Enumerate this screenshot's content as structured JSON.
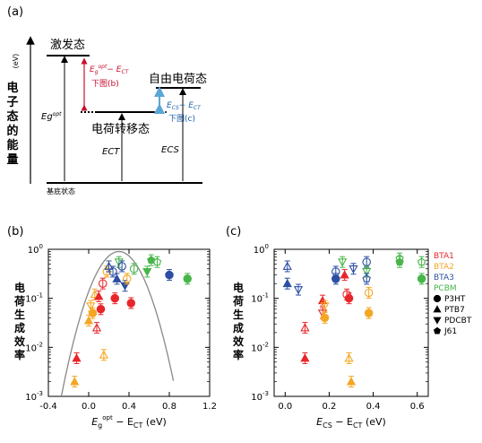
{
  "panel_labels": {
    "a": "(a)",
    "b": "(b)",
    "c": "(c)"
  },
  "diagram": {
    "y_axis_label": [
      "电",
      "子",
      "态",
      "的",
      "能",
      "量"
    ],
    "y_axis_unit": "(eV)",
    "excited_state": "激发态",
    "ct_state": "电荷转移态",
    "free_charge_state": "自由电荷态",
    "ground_state": "基底状态",
    "eg_label": "Eg",
    "eg_sup": "opt",
    "ect_label": "ECT",
    "ecs_label": "ECS",
    "diff_red_line1_a": "E",
    "diff_red_line1_sub": "g",
    "diff_red_line1_sup": "opt",
    "diff_red_line1_b": "− E",
    "diff_red_line1_sub2": "CT",
    "diff_red_line2": "下图(b)",
    "diff_blue_line1_a": "E",
    "diff_blue_line1_sub": "CS",
    "diff_blue_line1_b": "− E",
    "diff_blue_line1_sub2": "CT",
    "diff_blue_line2": "下图(c)",
    "colors": {
      "red": "#c8102e",
      "blue": "#1f5fa8",
      "light_blue": "#5aa6d8"
    }
  },
  "y_label_chars": [
    "电",
    "荷",
    "生",
    "成",
    "效",
    "率"
  ],
  "legend": {
    "acceptors": [
      {
        "name": "BTA1",
        "color": "#e8262a"
      },
      {
        "name": "BTA2",
        "color": "#f5a623"
      },
      {
        "name": "BTA3",
        "color": "#2b4ea2"
      },
      {
        "name": "PCBM",
        "color": "#47b549"
      }
    ],
    "donors": [
      {
        "name": "P3HT",
        "marker": "circle"
      },
      {
        "name": "PTB7",
        "marker": "triangle-up"
      },
      {
        "name": "PDCBT",
        "marker": "triangle-down"
      },
      {
        "name": "J61",
        "marker": "pentagon"
      }
    ]
  },
  "chart_data": [
    {
      "type": "scatter",
      "panel": "b",
      "xlabel_main": "E",
      "xlabel_sub1": "g",
      "xlabel_sup": "opt",
      "xlabel_mid": " − E",
      "xlabel_sub2": "CT",
      "xlabel_unit": " (eV)",
      "ylabel": "电荷生成效率",
      "xlim": [
        -0.4,
        1.2
      ],
      "ylim": [
        0.001,
        1
      ],
      "yscale": "log",
      "xticks": [
        "-0.4",
        "0.0",
        "0.4",
        "0.8",
        "1.2"
      ],
      "yticks": [
        "10",
        "10",
        "10",
        "10"
      ],
      "ytick_exps": [
        "-3",
        "-2",
        "-1",
        "0"
      ],
      "fit_curve": "gaussian",
      "points": [
        {
          "x": -0.12,
          "y": 0.006,
          "color": "#e8262a",
          "marker": "triangle-up",
          "filled": true
        },
        {
          "x": -0.14,
          "y": 0.002,
          "color": "#f5a623",
          "marker": "triangle-up",
          "filled": true
        },
        {
          "x": 0.0,
          "y": 0.035,
          "color": "#f5a623",
          "marker": "triangle-up",
          "filled": true
        },
        {
          "x": 0.02,
          "y": 0.07,
          "color": "#f5a623",
          "marker": "triangle-down",
          "filled": false
        },
        {
          "x": 0.04,
          "y": 0.05,
          "color": "#f5a623",
          "marker": "circle",
          "filled": true
        },
        {
          "x": 0.06,
          "y": 0.12,
          "color": "#f5a623",
          "marker": "triangle-up",
          "filled": false
        },
        {
          "x": 0.08,
          "y": 0.025,
          "color": "#e8262a",
          "marker": "triangle-up",
          "filled": false
        },
        {
          "x": 0.1,
          "y": 0.11,
          "color": "#e8262a",
          "marker": "triangle-up",
          "filled": true
        },
        {
          "x": 0.12,
          "y": 0.06,
          "color": "#e8262a",
          "marker": "circle",
          "filled": true
        },
        {
          "x": 0.14,
          "y": 0.2,
          "color": "#e8262a",
          "marker": "circle",
          "filled": false
        },
        {
          "x": 0.15,
          "y": 0.007,
          "color": "#f5a623",
          "marker": "triangle-up",
          "filled": false
        },
        {
          "x": 0.18,
          "y": 0.35,
          "color": "#f5a623",
          "marker": "circle",
          "filled": false
        },
        {
          "x": 0.2,
          "y": 0.45,
          "color": "#2b4ea2",
          "marker": "triangle-up",
          "filled": false
        },
        {
          "x": 0.24,
          "y": 0.35,
          "color": "#2b4ea2",
          "marker": "circle",
          "filled": false
        },
        {
          "x": 0.26,
          "y": 0.1,
          "color": "#e8262a",
          "marker": "circle",
          "filled": true
        },
        {
          "x": 0.28,
          "y": 0.25,
          "color": "#2b4ea2",
          "marker": "triangle-up",
          "filled": true
        },
        {
          "x": 0.3,
          "y": 0.55,
          "color": "#47b549",
          "marker": "triangle-down",
          "filled": false
        },
        {
          "x": 0.33,
          "y": 0.45,
          "color": "#2b4ea2",
          "marker": "circle",
          "filled": false
        },
        {
          "x": 0.36,
          "y": 0.18,
          "color": "#2b4ea2",
          "marker": "triangle-down",
          "filled": true
        },
        {
          "x": 0.38,
          "y": 0.25,
          "color": "#f5a623",
          "marker": "circle",
          "filled": false
        },
        {
          "x": 0.42,
          "y": 0.08,
          "color": "#e8262a",
          "marker": "circle",
          "filled": true
        },
        {
          "x": 0.45,
          "y": 0.4,
          "color": "#47b549",
          "marker": "circle",
          "filled": false
        },
        {
          "x": 0.58,
          "y": 0.35,
          "color": "#47b549",
          "marker": "triangle-down",
          "filled": true
        },
        {
          "x": 0.62,
          "y": 0.6,
          "color": "#47b549",
          "marker": "pentagon",
          "filled": true
        },
        {
          "x": 0.68,
          "y": 0.55,
          "color": "#47b549",
          "marker": "pentagon",
          "filled": false
        },
        {
          "x": 0.8,
          "y": 0.3,
          "color": "#2b4ea2",
          "marker": "circle",
          "filled": true
        },
        {
          "x": 0.98,
          "y": 0.25,
          "color": "#47b549",
          "marker": "circle",
          "filled": true
        }
      ]
    },
    {
      "type": "scatter",
      "panel": "c",
      "xlabel_main": "E",
      "xlabel_sub1": "CS",
      "xlabel_mid": " − E",
      "xlabel_sub2": "CT",
      "xlabel_unit": " (eV)",
      "ylabel": "电荷生成效率",
      "xlim": [
        -0.05,
        0.65
      ],
      "ylim": [
        0.001,
        1
      ],
      "yscale": "log",
      "xticks": [
        "0.0",
        "0.2",
        "0.4",
        "0.6"
      ],
      "yticks": [
        "10",
        "10",
        "10",
        "10"
      ],
      "ytick_exps": [
        "-3",
        "-2",
        "-1",
        "0"
      ],
      "points": [
        {
          "x": 0.01,
          "y": 0.45,
          "color": "#2b4ea2",
          "marker": "triangle-up",
          "filled": false
        },
        {
          "x": 0.01,
          "y": 0.2,
          "color": "#2b4ea2",
          "marker": "triangle-up",
          "filled": true
        },
        {
          "x": 0.06,
          "y": 0.15,
          "color": "#2b4ea2",
          "marker": "triangle-down",
          "filled": false
        },
        {
          "x": 0.09,
          "y": 0.025,
          "color": "#e8262a",
          "marker": "triangle-up",
          "filled": false
        },
        {
          "x": 0.09,
          "y": 0.006,
          "color": "#e8262a",
          "marker": "triangle-up",
          "filled": true
        },
        {
          "x": 0.17,
          "y": 0.05,
          "color": "#e8262a",
          "marker": "triangle-down",
          "filled": false
        },
        {
          "x": 0.17,
          "y": 0.09,
          "color": "#e8262a",
          "marker": "triangle-up",
          "filled": true
        },
        {
          "x": 0.18,
          "y": 0.04,
          "color": "#f5a623",
          "marker": "circle",
          "filled": true
        },
        {
          "x": 0.18,
          "y": 0.07,
          "color": "#f5a623",
          "marker": "triangle-down",
          "filled": false
        },
        {
          "x": 0.23,
          "y": 0.35,
          "color": "#2b4ea2",
          "marker": "circle",
          "filled": false
        },
        {
          "x": 0.23,
          "y": 0.25,
          "color": "#2b4ea2",
          "marker": "circle",
          "filled": true
        },
        {
          "x": 0.26,
          "y": 0.55,
          "color": "#47b549",
          "marker": "triangle-down",
          "filled": false
        },
        {
          "x": 0.27,
          "y": 0.3,
          "color": "#e8262a",
          "marker": "triangle-up",
          "filled": true
        },
        {
          "x": 0.28,
          "y": 0.12,
          "color": "#e8262a",
          "marker": "circle",
          "filled": false
        },
        {
          "x": 0.29,
          "y": 0.1,
          "color": "#e8262a",
          "marker": "circle",
          "filled": true
        },
        {
          "x": 0.29,
          "y": 0.006,
          "color": "#f5a623",
          "marker": "triangle-up",
          "filled": false
        },
        {
          "x": 0.3,
          "y": 0.002,
          "color": "#f5a623",
          "marker": "triangle-up",
          "filled": true
        },
        {
          "x": 0.31,
          "y": 0.4,
          "color": "#2b4ea2",
          "marker": "triangle-down",
          "filled": false
        },
        {
          "x": 0.37,
          "y": 0.55,
          "color": "#2b4ea2",
          "marker": "circle",
          "filled": false
        },
        {
          "x": 0.37,
          "y": 0.35,
          "color": "#47b549",
          "marker": "triangle-down",
          "filled": false
        },
        {
          "x": 0.38,
          "y": 0.13,
          "color": "#f5a623",
          "marker": "circle",
          "filled": false
        },
        {
          "x": 0.38,
          "y": 0.05,
          "color": "#f5a623",
          "marker": "circle",
          "filled": true
        },
        {
          "x": 0.37,
          "y": 0.25,
          "color": "#2b4ea2",
          "marker": "pentagon",
          "filled": false
        },
        {
          "x": 0.52,
          "y": 0.65,
          "color": "#47b549",
          "marker": "pentagon",
          "filled": false
        },
        {
          "x": 0.52,
          "y": 0.55,
          "color": "#47b549",
          "marker": "pentagon",
          "filled": true
        },
        {
          "x": 0.62,
          "y": 0.55,
          "color": "#47b549",
          "marker": "pentagon",
          "filled": false
        },
        {
          "x": 0.62,
          "y": 0.25,
          "color": "#47b549",
          "marker": "circle",
          "filled": true
        }
      ]
    }
  ]
}
